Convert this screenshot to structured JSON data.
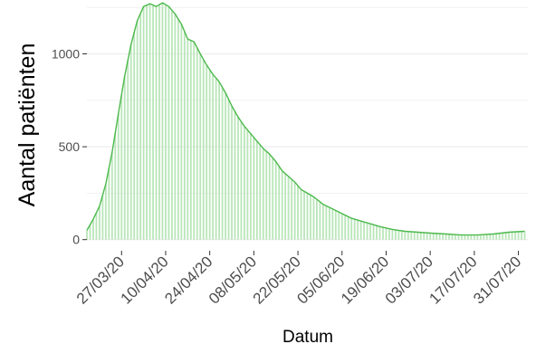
{
  "colors": {
    "background": "#ffffff",
    "gridline": "#ebebeb",
    "line": "#4cb94c",
    "bar": "#b9e6b9",
    "text": "#000000",
    "tick_text": "#4d4d4d"
  },
  "chart_data": {
    "type": "area",
    "title": "",
    "xlabel": "Datum",
    "ylabel": "Aantal patiënten",
    "x_start": "2020-03-16",
    "x_end": "2020-08-03",
    "ylim": [
      -60,
      1290
    ],
    "y_ticks": [
      0,
      500,
      1000
    ],
    "y_tick_labels": [
      "0",
      "500",
      "1000"
    ],
    "grid": true,
    "legend": "none",
    "x_ticks": [
      "2020-03-27",
      "2020-04-10",
      "2020-04-24",
      "2020-05-08",
      "2020-05-22",
      "2020-06-05",
      "2020-06-19",
      "2020-07-03",
      "2020-07-17",
      "2020-07-31"
    ],
    "x_tick_labels": [
      "27/03/20",
      "10/04/20",
      "24/04/20",
      "08/05/20",
      "22/05/20",
      "05/06/20",
      "19/06/20",
      "03/07/20",
      "17/07/20",
      "31/07/20"
    ],
    "series": [
      {
        "x": [
          "2020-03-16",
          "2020-03-18",
          "2020-03-20",
          "2020-03-22",
          "2020-03-24",
          "2020-03-26",
          "2020-03-28",
          "2020-03-30",
          "2020-04-01",
          "2020-04-03",
          "2020-04-05",
          "2020-04-07",
          "2020-04-09",
          "2020-04-11",
          "2020-04-13",
          "2020-04-15",
          "2020-04-17",
          "2020-04-19",
          "2020-04-21",
          "2020-04-23",
          "2020-04-25",
          "2020-04-27",
          "2020-04-29",
          "2020-05-01",
          "2020-05-03",
          "2020-05-05",
          "2020-05-07",
          "2020-05-09",
          "2020-05-11",
          "2020-05-13",
          "2020-05-15",
          "2020-05-17",
          "2020-05-19",
          "2020-05-21",
          "2020-05-23",
          "2020-05-25",
          "2020-05-27",
          "2020-05-30",
          "2020-06-02",
          "2020-06-05",
          "2020-06-08",
          "2020-06-11",
          "2020-06-14",
          "2020-06-17",
          "2020-06-21",
          "2020-06-25",
          "2020-06-29",
          "2020-07-03",
          "2020-07-08",
          "2020-07-13",
          "2020-07-18",
          "2020-07-23",
          "2020-07-28",
          "2020-08-02"
        ],
        "values": [
          50,
          110,
          180,
          300,
          470,
          680,
          880,
          1050,
          1180,
          1255,
          1270,
          1255,
          1275,
          1255,
          1215,
          1160,
          1080,
          1065,
          1000,
          940,
          890,
          850,
          790,
          720,
          660,
          610,
          570,
          530,
          490,
          460,
          420,
          370,
          340,
          310,
          270,
          250,
          230,
          190,
          165,
          140,
          115,
          100,
          85,
          70,
          55,
          45,
          40,
          35,
          30,
          25,
          25,
          30,
          40,
          45
        ]
      }
    ]
  }
}
